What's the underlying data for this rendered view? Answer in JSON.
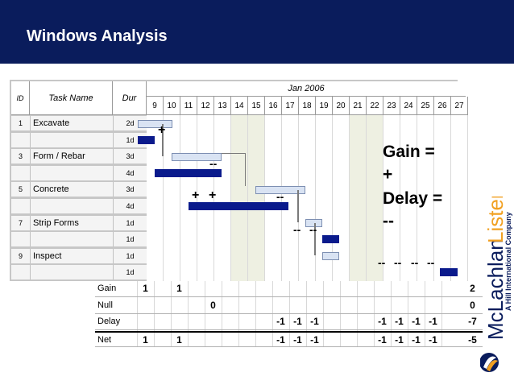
{
  "header": {
    "title": "Windows Analysis"
  },
  "gantt": {
    "columns": {
      "id": "ID",
      "task_name": "Task Name",
      "duration": "Dur"
    },
    "month": "Jan 2006",
    "days": [
      "9",
      "10",
      "11",
      "12",
      "13",
      "14",
      "15",
      "16",
      "17",
      "18",
      "19",
      "20",
      "21",
      "22",
      "23",
      "24",
      "25",
      "26",
      "27"
    ],
    "rows": [
      {
        "id": "1",
        "task": "Excavate",
        "dur": "2d"
      },
      {
        "id": "",
        "task": "",
        "dur": "1d"
      },
      {
        "id": "3",
        "task": "Form / Rebar",
        "dur": "3d"
      },
      {
        "id": "",
        "task": "",
        "dur": "4d"
      },
      {
        "id": "5",
        "task": "Concrete",
        "dur": "3d"
      },
      {
        "id": "",
        "task": "",
        "dur": "4d"
      },
      {
        "id": "7",
        "task": "Strip Forms",
        "dur": "1d"
      },
      {
        "id": "",
        "task": "",
        "dur": "1d"
      },
      {
        "id": "9",
        "task": "Inspect",
        "dur": "1d"
      },
      {
        "id": "",
        "task": "",
        "dur": "1d"
      }
    ],
    "markers": {
      "plus": "+",
      "minus": "--"
    },
    "gain_label": "Gain =",
    "gain_symbol": "+",
    "delay_label": "Delay =",
    "delay_symbol": "--",
    "colors": {
      "actual_bar": "#0a1a8c",
      "planned_bar": "#d9e3f3",
      "banner": "#0a1c5c"
    }
  },
  "summary": {
    "rows": [
      {
        "label": "Gain",
        "values": [
          "1",
          "",
          "1",
          "",
          "",
          "",
          "",
          "",
          "",
          "",
          "",
          "",
          "",
          "",
          "",
          "",
          "",
          "",
          ""
        ],
        "total": "2"
      },
      {
        "label": "Null",
        "values": [
          "",
          "",
          "",
          "",
          "0",
          "",
          "",
          "",
          "",
          "",
          "",
          "",
          "",
          "",
          "",
          "",
          "",
          "",
          ""
        ],
        "total": "0"
      },
      {
        "label": "Delay",
        "values": [
          "",
          "",
          "",
          "",
          "",
          "",
          "",
          "",
          "-1",
          "-1",
          "-1",
          "",
          "",
          "",
          "-1",
          "-1",
          "-1",
          "-1",
          ""
        ],
        "total": "-7"
      },
      {
        "label": "Net",
        "values": [
          "1",
          "",
          "1",
          "",
          "",
          "",
          "",
          "",
          "-1",
          "-1",
          "-1",
          "",
          "",
          "",
          "-1",
          "-1",
          "-1",
          "-1",
          ""
        ],
        "total": "-5"
      }
    ]
  },
  "logo": {
    "name": "McLachlanLister",
    "tagline": "A Hill International Company"
  }
}
